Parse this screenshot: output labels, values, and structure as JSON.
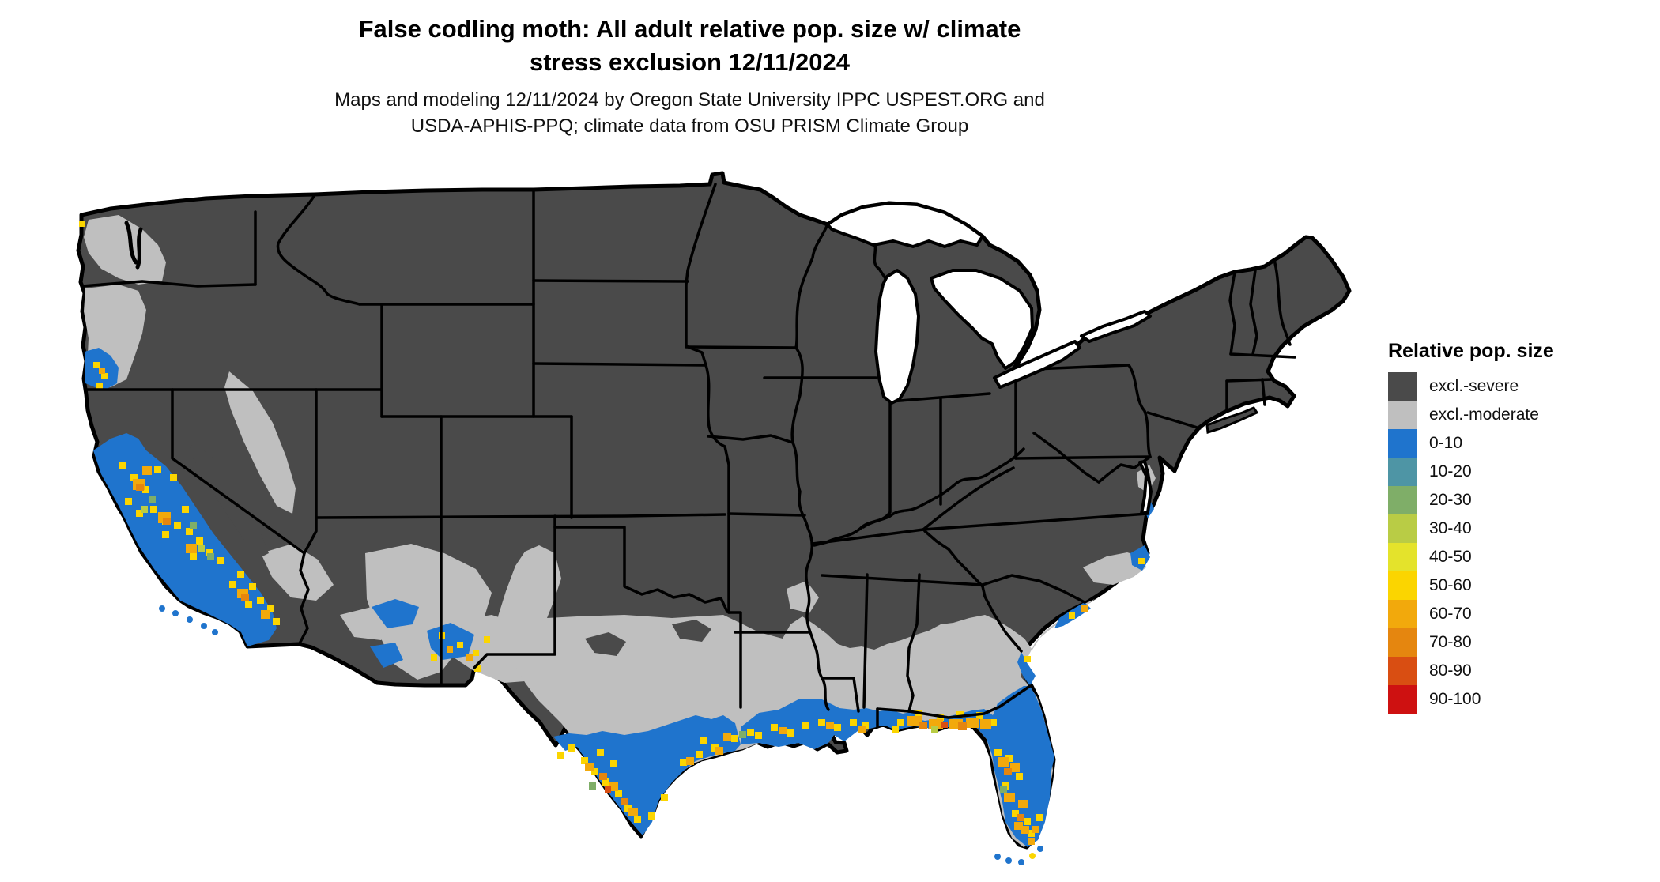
{
  "header": {
    "title_lines": [
      "False codling moth: All adult relative pop. size w/ climate",
      "stress exclusion 12/11/2024"
    ],
    "subtitle_lines": [
      "Maps and modeling 12/11/2024 by Oregon State University IPPC USPEST.ORG and",
      "USDA-APHIS-PPQ; climate data from OSU PRISM Climate Group"
    ]
  },
  "legend": {
    "title": "Relative pop. size",
    "items": [
      {
        "label": "excl.-severe",
        "color": "#4a4a4a"
      },
      {
        "label": "excl.-moderate",
        "color": "#bfbfbf"
      },
      {
        "label": "0-10",
        "color": "#1f74cd"
      },
      {
        "label": "10-20",
        "color": "#4e95a5"
      },
      {
        "label": "20-30",
        "color": "#7fae68"
      },
      {
        "label": "30-40",
        "color": "#b9cc45"
      },
      {
        "label": "40-50",
        "color": "#e4e32b"
      },
      {
        "label": "50-60",
        "color": "#fbd500"
      },
      {
        "label": "60-70",
        "color": "#f2a90c"
      },
      {
        "label": "70-80",
        "color": "#e5860f"
      },
      {
        "label": "80-90",
        "color": "#d94e12"
      },
      {
        "label": "90-100",
        "color": "#ce1111"
      }
    ]
  },
  "chart_data": {
    "type": "heatmap",
    "map_region": "Contiguous United States with state boundaries",
    "legend_title": "Relative pop. size",
    "categories": [
      "excl.-severe",
      "excl.-moderate",
      "0-10",
      "10-20",
      "20-30",
      "30-40",
      "40-50",
      "50-60",
      "60-70",
      "70-80",
      "80-90",
      "90-100"
    ],
    "colors": [
      "#4a4a4a",
      "#bfbfbf",
      "#1f74cd",
      "#4e95a5",
      "#7fae68",
      "#b9cc45",
      "#e4e32b",
      "#fbd500",
      "#f2a90c",
      "#e5860f",
      "#d94e12",
      "#ce1111"
    ],
    "region_summary": {
      "excl.-severe": "Interior and northern US: Mountain West, Great Plains, Midwest, Northeast, Appalachia, eastern WA/OR, Nevada, Utah",
      "excl.-moderate": "Western WA and OR lowlands, central Texas, inland Gulf states, southern Georgia, SC coastal plain, patches of AZ/NM and CA fringes",
      "0-10": "California Central Valley and coast, SW Oregon coast, southern Arizona patches, south Texas, Gulf Coast strip, Florida peninsula, southeastern Atlantic coastal strips",
      "40-100 hotspots": "California valleys and SoCal, lower Rio Grande Texas, Louisiana coast, Florida panhandle and central Florida"
    },
    "date_shown": "12/11/2024"
  }
}
